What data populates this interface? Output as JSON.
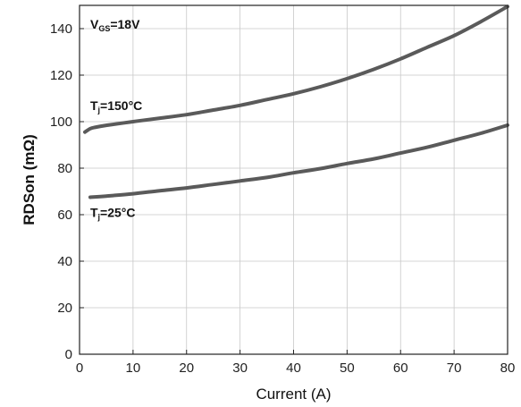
{
  "chart_data": {
    "type": "line",
    "xlabel": "Current (A)",
    "ylabel": "RDSon (mΩ)",
    "xlim": [
      0,
      80
    ],
    "ylim": [
      0,
      150
    ],
    "xticks": [
      "0",
      "10",
      "20",
      "30",
      "40",
      "50",
      "60",
      "70",
      "80"
    ],
    "yticks": [
      "0",
      "20",
      "40",
      "60",
      "80",
      "100",
      "120",
      "140"
    ],
    "grid": true,
    "series": [
      {
        "x": [
          1,
          2,
          3,
          5,
          10,
          15,
          20,
          25,
          30,
          35,
          40,
          45,
          50,
          55,
          60,
          65,
          70,
          75,
          80
        ],
        "values": [
          95.5,
          97,
          97.6,
          98.4,
          100,
          101.5,
          103,
          105,
          107,
          109.5,
          112,
          115,
          118.5,
          122.5,
          127,
          132,
          137,
          143,
          149.5
        ],
        "color": "#5a5a5a"
      },
      {
        "x": [
          2,
          5,
          10,
          15,
          20,
          25,
          30,
          35,
          40,
          45,
          50,
          55,
          60,
          65,
          70,
          75,
          80
        ],
        "values": [
          67.5,
          68,
          69,
          70.3,
          71.5,
          73,
          74.5,
          76,
          78,
          79.8,
          82,
          84,
          86.5,
          89,
          92,
          95,
          98.5
        ],
        "color": "#5a5a5a"
      }
    ],
    "annotations": [
      {
        "main": "V",
        "sub": "GS",
        "rest": "=18V",
        "x": 2,
        "y": 140
      },
      {
        "main": "T",
        "sub": "j",
        "rest": "=150°C",
        "x": 2,
        "y": 105
      },
      {
        "main": "T",
        "sub": "j",
        "rest": "=25°C",
        "x": 2,
        "y": 59
      }
    ]
  }
}
